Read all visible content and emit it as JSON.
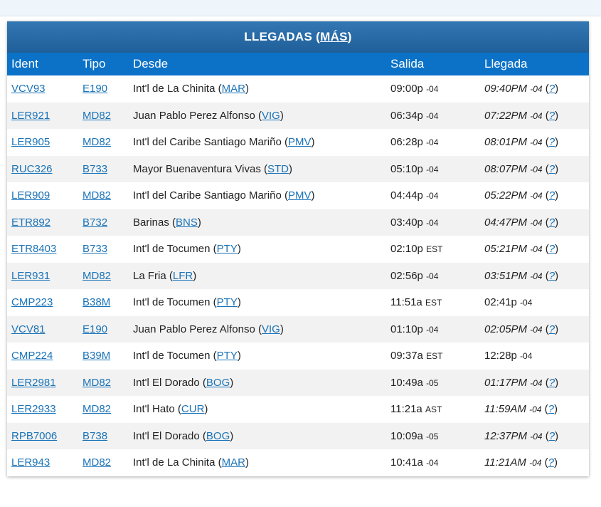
{
  "header": {
    "title": "LLEGADAS",
    "more_link": "MÁS"
  },
  "columns": {
    "ident": "Ident",
    "tipo": "Tipo",
    "desde": "Desde",
    "salida": "Salida",
    "llegada": "Llegada"
  },
  "rows": [
    {
      "ident": "VCV93",
      "tipo": "E190",
      "desde": "Int'l de La Chinita",
      "code": "MAR",
      "salida": "09:00p",
      "salida_tz": "-04",
      "llegada": "09:40PM",
      "llegada_tz": "-04",
      "italic": true
    },
    {
      "ident": "LER921",
      "tipo": "MD82",
      "desde": "Juan Pablo Perez Alfonso",
      "code": "VIG",
      "salida": "06:34p",
      "salida_tz": "-04",
      "llegada": "07:22PM",
      "llegada_tz": "-04",
      "italic": true
    },
    {
      "ident": "LER905",
      "tipo": "MD82",
      "desde": "Int'l del Caribe Santiago Mariño",
      "code": "PMV",
      "salida": "06:28p",
      "salida_tz": "-04",
      "llegada": "08:01PM",
      "llegada_tz": "-04",
      "italic": true
    },
    {
      "ident": "RUC326",
      "tipo": "B733",
      "desde": "Mayor Buenaventura Vivas",
      "code": "STD",
      "salida": "05:10p",
      "salida_tz": "-04",
      "llegada": "08:07PM",
      "llegada_tz": "-04",
      "italic": true
    },
    {
      "ident": "LER909",
      "tipo": "MD82",
      "desde": "Int'l del Caribe Santiago Mariño",
      "code": "PMV",
      "salida": "04:44p",
      "salida_tz": "-04",
      "llegada": "05:22PM",
      "llegada_tz": "-04",
      "italic": true
    },
    {
      "ident": "ETR892",
      "tipo": "B732",
      "desde": "Barinas",
      "code": "BNS",
      "salida": "03:40p",
      "salida_tz": "-04",
      "llegada": "04:47PM",
      "llegada_tz": "-04",
      "italic": true
    },
    {
      "ident": "ETR8403",
      "tipo": "B733",
      "desde": "Int'l de Tocumen",
      "code": "PTY",
      "salida": "02:10p",
      "salida_tz": "EST",
      "llegada": "05:21PM",
      "llegada_tz": "-04",
      "italic": true
    },
    {
      "ident": "LER931",
      "tipo": "MD82",
      "desde": "La Fria",
      "code": "LFR",
      "salida": "02:56p",
      "salida_tz": "-04",
      "llegada": "03:51PM",
      "llegada_tz": "-04",
      "italic": true
    },
    {
      "ident": "CMP223",
      "tipo": "B38M",
      "desde": "Int'l de Tocumen",
      "code": "PTY",
      "salida": "11:51a",
      "salida_tz": "EST",
      "llegada": "02:41p",
      "llegada_tz": "-04",
      "italic": false
    },
    {
      "ident": "VCV81",
      "tipo": "E190",
      "desde": "Juan Pablo Perez Alfonso",
      "code": "VIG",
      "salida": "01:10p",
      "salida_tz": "-04",
      "llegada": "02:05PM",
      "llegada_tz": "-04",
      "italic": true
    },
    {
      "ident": "CMP224",
      "tipo": "B39M",
      "desde": "Int'l de Tocumen",
      "code": "PTY",
      "salida": "09:37a",
      "salida_tz": "EST",
      "llegada": "12:28p",
      "llegada_tz": "-04",
      "italic": false
    },
    {
      "ident": "LER2981",
      "tipo": "MD82",
      "desde": "Int'l El Dorado",
      "code": "BOG",
      "salida": "10:49a",
      "salida_tz": "-05",
      "llegada": "01:17PM",
      "llegada_tz": "-04",
      "italic": true
    },
    {
      "ident": "LER2933",
      "tipo": "MD82",
      "desde": "Int'l Hato",
      "code": "CUR",
      "salida": "11:21a",
      "salida_tz": "AST",
      "llegada": "11:59AM",
      "llegada_tz": "-04",
      "italic": true
    },
    {
      "ident": "RPB7006",
      "tipo": "B738",
      "desde": "Int'l El Dorado",
      "code": "BOG",
      "salida": "10:09a",
      "salida_tz": "-05",
      "llegada": "12:37PM",
      "llegada_tz": "-04",
      "italic": true
    },
    {
      "ident": "LER943",
      "tipo": "MD82",
      "desde": "Int'l de La Chinita",
      "code": "MAR",
      "salida": "10:41a",
      "salida_tz": "-04",
      "llegada": "11:21AM",
      "llegada_tz": "-04",
      "italic": true
    }
  ],
  "estimate_marker": "?"
}
